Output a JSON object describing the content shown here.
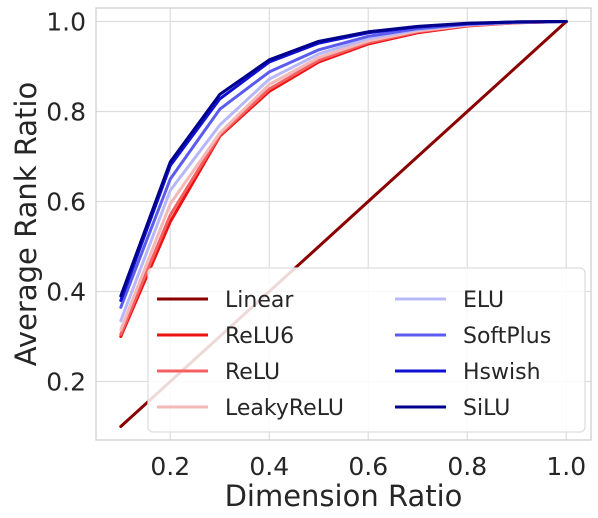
{
  "chart_data": {
    "type": "line",
    "xlabel": "Dimension Ratio",
    "ylabel": "Average Rank Ratio",
    "xlim": [
      0.05,
      1.05
    ],
    "ylim": [
      0.07,
      1.03
    ],
    "xticks": [
      0.2,
      0.4,
      0.6,
      0.8,
      1.0
    ],
    "xtick_labels": [
      "0.2",
      "0.4",
      "0.6",
      "0.8",
      "1.0"
    ],
    "yticks": [
      0.2,
      0.4,
      0.6,
      0.8,
      1.0
    ],
    "ytick_labels": [
      "0.2",
      "0.4",
      "0.6",
      "0.8",
      "1.0"
    ],
    "grid": true,
    "legend_position": "lower-right",
    "legend_columns": 2,
    "x": [
      0.1,
      0.2,
      0.3,
      0.4,
      0.5,
      0.6,
      0.7,
      0.8,
      0.9,
      1.0
    ],
    "series": [
      {
        "name": "Linear",
        "color": "#8b0000",
        "values": [
          0.1,
          0.2,
          0.3,
          0.4,
          0.5,
          0.6,
          0.7,
          0.8,
          0.9,
          1.0
        ]
      },
      {
        "name": "ReLU6",
        "color": "#ee1111",
        "values": [
          0.3,
          0.555,
          0.745,
          0.845,
          0.91,
          0.95,
          0.975,
          0.99,
          0.997,
          1.0
        ]
      },
      {
        "name": "ReLU",
        "color": "#f46060",
        "values": [
          0.305,
          0.57,
          0.748,
          0.85,
          0.914,
          0.953,
          0.977,
          0.991,
          0.997,
          1.0
        ]
      },
      {
        "name": "LeakyReLU",
        "color": "#f4b8b8",
        "values": [
          0.315,
          0.595,
          0.752,
          0.86,
          0.92,
          0.957,
          0.979,
          0.992,
          0.998,
          1.0
        ]
      },
      {
        "name": "ELU",
        "color": "#b8b8f8",
        "values": [
          0.335,
          0.625,
          0.77,
          0.872,
          0.928,
          0.962,
          0.982,
          0.993,
          0.998,
          1.0
        ]
      },
      {
        "name": "SoftPlus",
        "color": "#5b5bf0",
        "values": [
          0.365,
          0.65,
          0.805,
          0.888,
          0.937,
          0.967,
          0.984,
          0.994,
          0.998,
          1.0
        ]
      },
      {
        "name": "Hswish",
        "color": "#1010d0",
        "values": [
          0.38,
          0.68,
          0.828,
          0.91,
          0.952,
          0.975,
          0.988,
          0.995,
          0.999,
          1.0
        ]
      },
      {
        "name": "SiLU",
        "color": "#00008b",
        "values": [
          0.39,
          0.688,
          0.838,
          0.915,
          0.956,
          0.977,
          0.989,
          0.996,
          0.999,
          1.0
        ]
      }
    ]
  }
}
